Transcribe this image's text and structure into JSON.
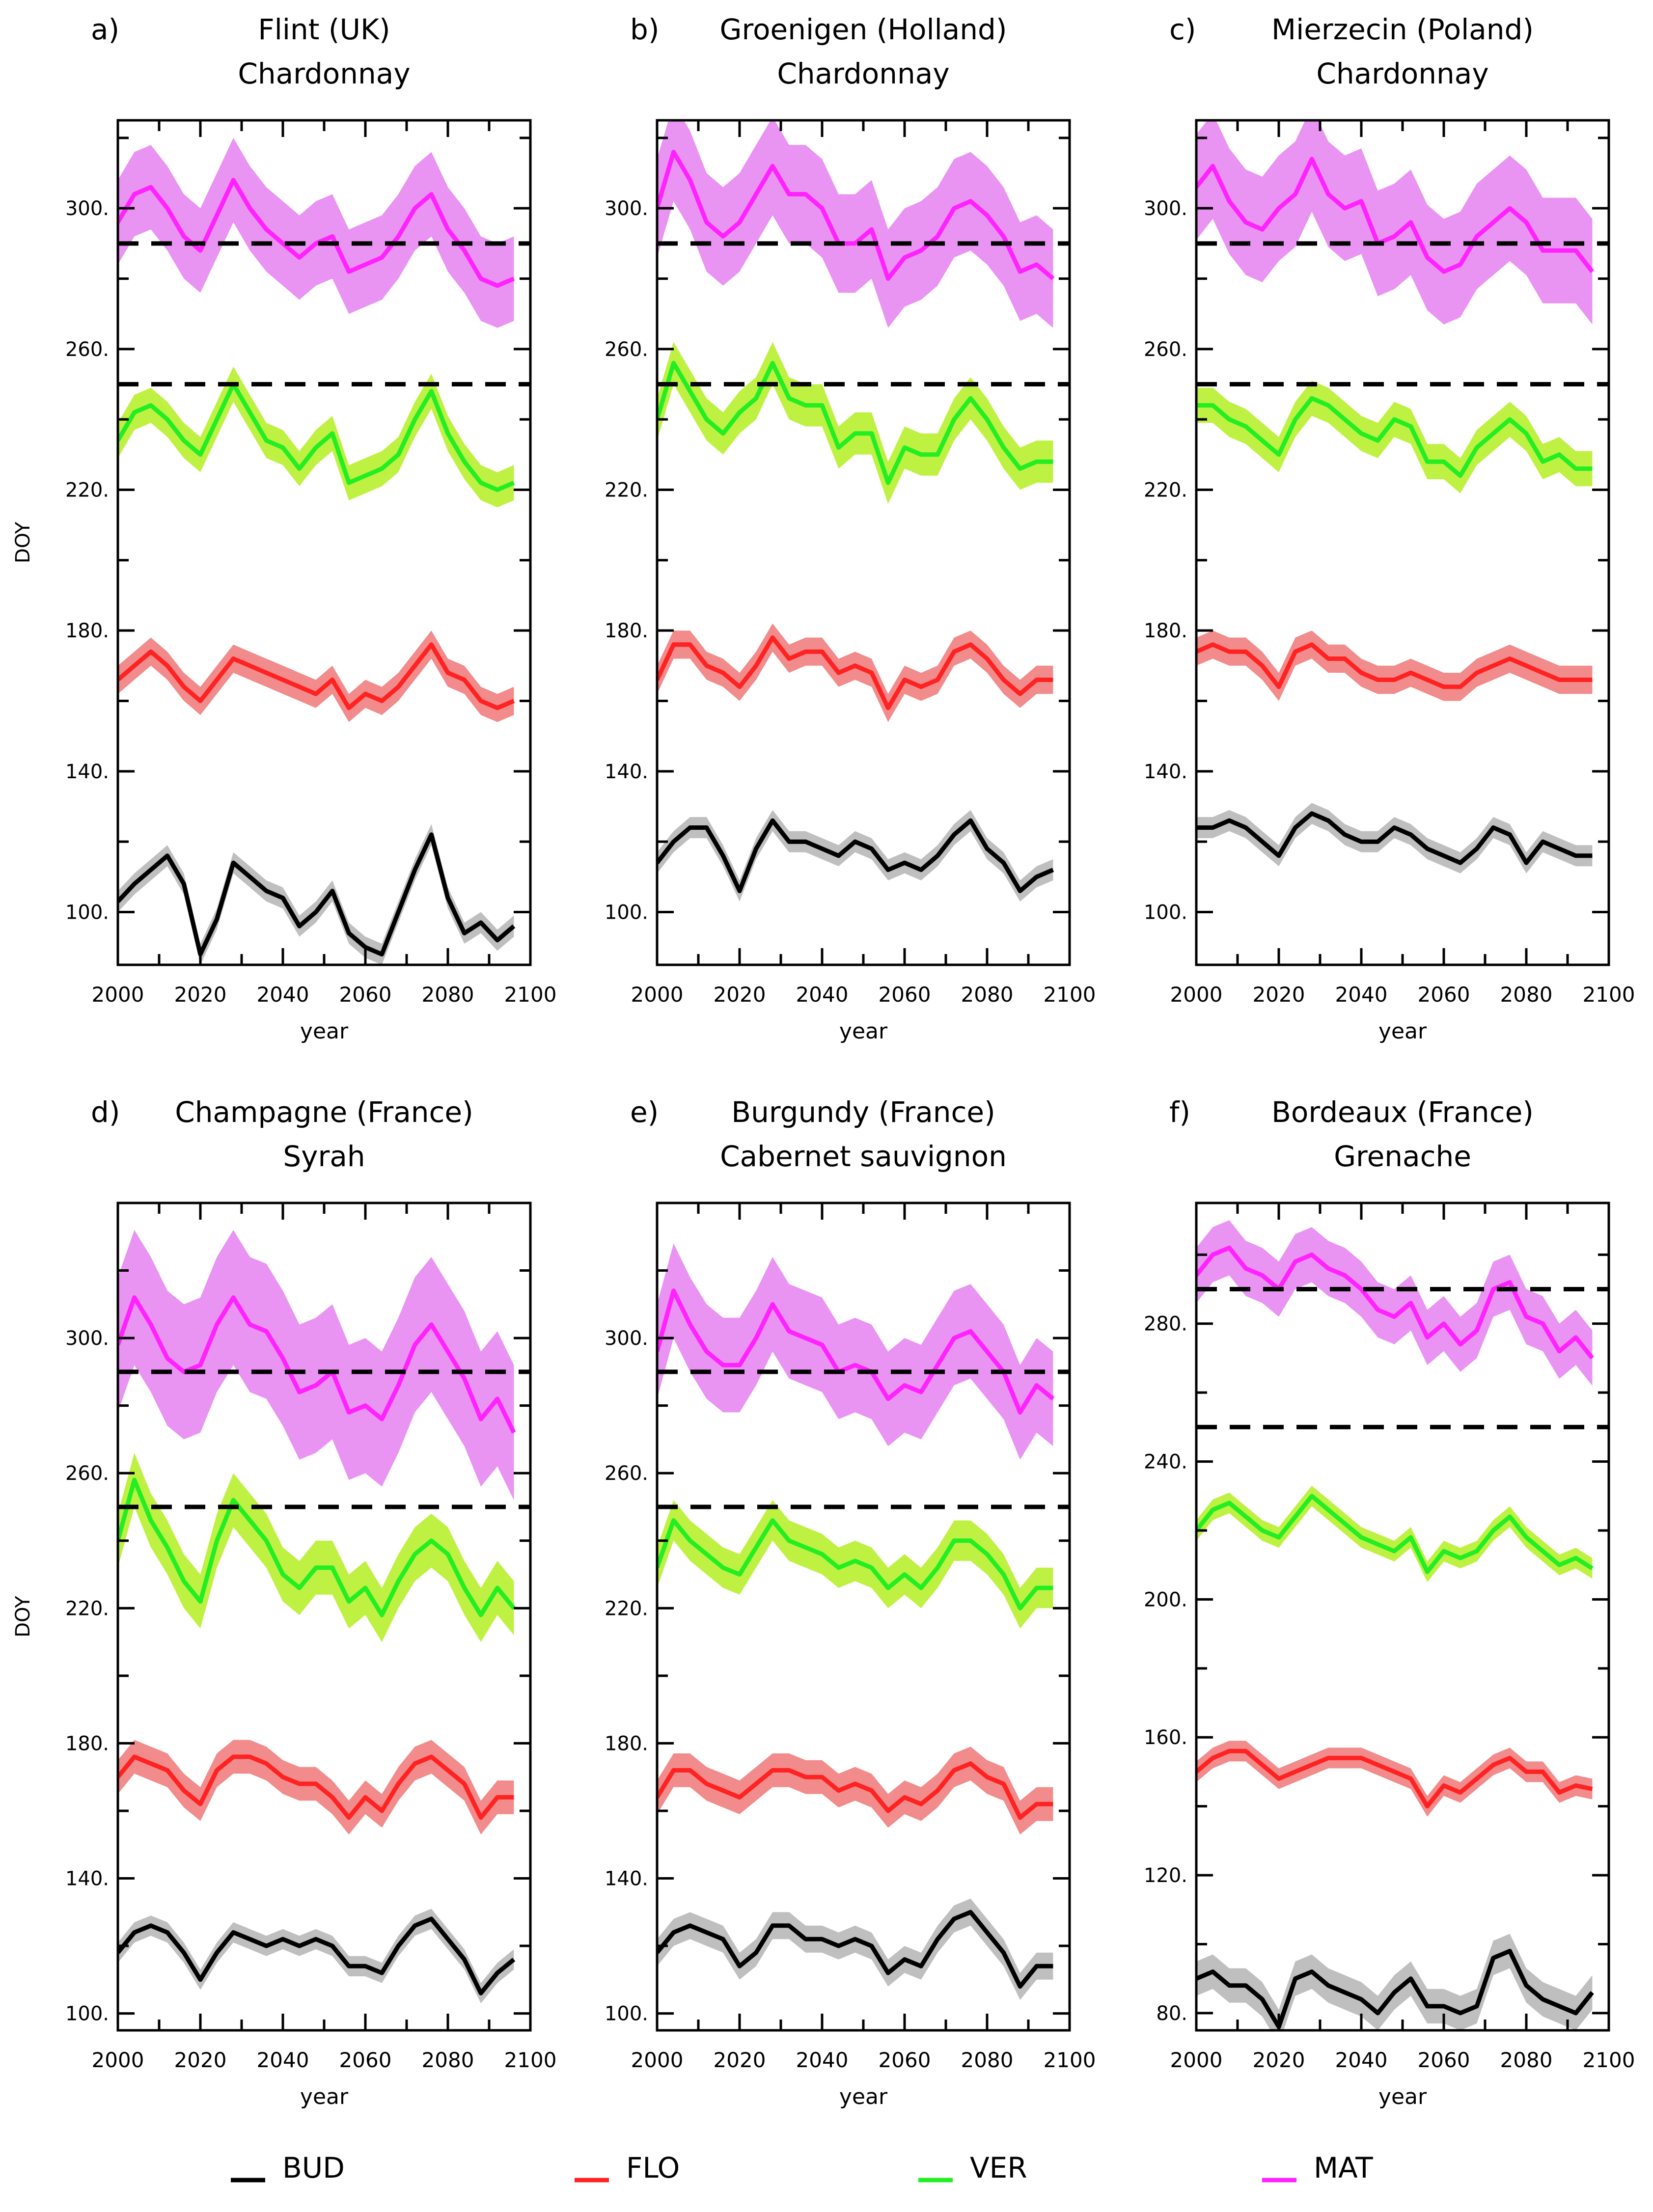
{
  "figure": {
    "common": {
      "ylabel": "DOY",
      "xlabel": "year",
      "xticks": [
        2000,
        2020,
        2040,
        2060,
        2080,
        2100
      ],
      "xlim": [
        2000,
        2100
      ]
    },
    "legend": [
      {
        "name": "BUD",
        "color": "#000000"
      },
      {
        "name": "FLO",
        "color": "#ff2222"
      },
      {
        "name": "VER",
        "color": "#22ee22"
      },
      {
        "name": "MAT",
        "color": "#ff22ff"
      }
    ]
  },
  "chart_data": [
    {
      "type": "line",
      "panel": "a)",
      "title": "Flint (UK)",
      "subtitle": "Chardonnay",
      "xlabel": "year",
      "ylabel": "DOY",
      "xlim": [
        2000,
        2100
      ],
      "ylim": [
        85,
        325
      ],
      "yticks": [
        100,
        140,
        180,
        220,
        260,
        300
      ],
      "yticklabels": [
        "100.",
        "140.",
        "180.",
        "220.",
        "260.",
        "300."
      ],
      "thresholds": [
        250,
        290
      ],
      "x": [
        2000,
        2004,
        2008,
        2012,
        2016,
        2020,
        2024,
        2028,
        2032,
        2036,
        2040,
        2044,
        2048,
        2052,
        2056,
        2060,
        2064,
        2068,
        2072,
        2076,
        2080,
        2084,
        2088,
        2092,
        2096
      ],
      "series": [
        {
          "name": "BUD",
          "band": 3,
          "values": [
            103,
            108,
            112,
            116,
            108,
            88,
            98,
            114,
            110,
            106,
            104,
            96,
            100,
            106,
            94,
            90,
            88,
            100,
            112,
            122,
            104,
            94,
            97,
            92,
            96
          ]
        },
        {
          "name": "FLO",
          "band": 4,
          "values": [
            166,
            170,
            174,
            170,
            164,
            160,
            166,
            172,
            170,
            168,
            166,
            164,
            162,
            166,
            158,
            162,
            160,
            164,
            170,
            176,
            168,
            166,
            160,
            158,
            160
          ]
        },
        {
          "name": "VER",
          "band": 5,
          "values": [
            234,
            242,
            244,
            240,
            234,
            230,
            240,
            250,
            242,
            234,
            232,
            226,
            232,
            236,
            222,
            224,
            226,
            230,
            240,
            248,
            236,
            228,
            222,
            220,
            222
          ]
        },
        {
          "name": "MAT",
          "band": 12,
          "values": [
            296,
            304,
            306,
            300,
            292,
            288,
            298,
            308,
            300,
            294,
            290,
            286,
            290,
            292,
            282,
            284,
            286,
            292,
            300,
            304,
            294,
            288,
            280,
            278,
            280
          ]
        }
      ]
    },
    {
      "type": "line",
      "panel": "b)",
      "title": "Groenigen (Holland)",
      "subtitle": "Chardonnay",
      "xlabel": "year",
      "ylabel": "DOY",
      "xlim": [
        2000,
        2100
      ],
      "ylim": [
        85,
        325
      ],
      "yticks": [
        100,
        140,
        180,
        220,
        260,
        300
      ],
      "yticklabels": [
        "100.",
        "140.",
        "180.",
        "220.",
        "260.",
        "300."
      ],
      "thresholds": [
        250,
        290
      ],
      "x": [
        2000,
        2004,
        2008,
        2012,
        2016,
        2020,
        2024,
        2028,
        2032,
        2036,
        2040,
        2044,
        2048,
        2052,
        2056,
        2060,
        2064,
        2068,
        2072,
        2076,
        2080,
        2084,
        2088,
        2092,
        2096
      ],
      "series": [
        {
          "name": "BUD",
          "band": 3,
          "values": [
            114,
            120,
            124,
            124,
            116,
            106,
            118,
            126,
            120,
            120,
            118,
            116,
            120,
            118,
            112,
            114,
            112,
            116,
            122,
            126,
            118,
            114,
            106,
            110,
            112
          ]
        },
        {
          "name": "FLO",
          "band": 4,
          "values": [
            166,
            176,
            176,
            170,
            168,
            164,
            170,
            178,
            172,
            174,
            174,
            168,
            170,
            168,
            158,
            166,
            164,
            166,
            174,
            176,
            172,
            166,
            162,
            166,
            166
          ]
        },
        {
          "name": "VER",
          "band": 6,
          "values": [
            240,
            256,
            248,
            240,
            236,
            242,
            246,
            256,
            246,
            244,
            244,
            232,
            236,
            236,
            222,
            232,
            230,
            230,
            240,
            246,
            240,
            232,
            226,
            228,
            228
          ]
        },
        {
          "name": "MAT",
          "band": 14,
          "values": [
            300,
            316,
            308,
            296,
            292,
            296,
            304,
            312,
            304,
            304,
            300,
            290,
            290,
            294,
            280,
            286,
            288,
            292,
            300,
            302,
            298,
            292,
            282,
            284,
            280
          ]
        }
      ]
    },
    {
      "type": "line",
      "panel": "c)",
      "title": "Mierzecin (Poland)",
      "subtitle": "Chardonnay",
      "xlabel": "year",
      "ylabel": "DOY",
      "xlim": [
        2000,
        2100
      ],
      "ylim": [
        85,
        325
      ],
      "yticks": [
        100,
        140,
        180,
        220,
        260,
        300
      ],
      "yticklabels": [
        "100.",
        "140.",
        "180.",
        "220.",
        "260.",
        "300."
      ],
      "thresholds": [
        250,
        290
      ],
      "x": [
        2000,
        2004,
        2008,
        2012,
        2016,
        2020,
        2024,
        2028,
        2032,
        2036,
        2040,
        2044,
        2048,
        2052,
        2056,
        2060,
        2064,
        2068,
        2072,
        2076,
        2080,
        2084,
        2088,
        2092,
        2096
      ],
      "series": [
        {
          "name": "BUD",
          "band": 3,
          "values": [
            124,
            124,
            126,
            124,
            120,
            116,
            124,
            128,
            126,
            122,
            120,
            120,
            124,
            122,
            118,
            116,
            114,
            118,
            124,
            122,
            114,
            120,
            118,
            116,
            116
          ]
        },
        {
          "name": "FLO",
          "band": 4,
          "values": [
            174,
            176,
            174,
            174,
            170,
            164,
            174,
            176,
            172,
            172,
            168,
            166,
            166,
            168,
            166,
            164,
            164,
            168,
            170,
            172,
            170,
            168,
            166,
            166,
            166
          ]
        },
        {
          "name": "VER",
          "band": 5,
          "values": [
            244,
            244,
            240,
            238,
            234,
            230,
            240,
            246,
            244,
            240,
            236,
            234,
            240,
            238,
            228,
            228,
            224,
            232,
            236,
            240,
            236,
            228,
            230,
            226,
            226
          ]
        },
        {
          "name": "MAT",
          "band": 15,
          "values": [
            306,
            312,
            302,
            296,
            294,
            300,
            304,
            314,
            304,
            300,
            302,
            290,
            292,
            296,
            286,
            282,
            284,
            292,
            296,
            300,
            296,
            288,
            288,
            288,
            282
          ]
        }
      ]
    },
    {
      "type": "line",
      "panel": "d)",
      "title": "Champagne (France)",
      "subtitle": "Syrah",
      "xlabel": "year",
      "ylabel": "DOY",
      "xlim": [
        2000,
        2100
      ],
      "ylim": [
        95,
        340
      ],
      "yticks": [
        100,
        140,
        180,
        220,
        260,
        300
      ],
      "yticklabels": [
        "100.",
        "140.",
        "180.",
        "220.",
        "260.",
        "300."
      ],
      "thresholds": [
        250,
        290
      ],
      "x": [
        2000,
        2004,
        2008,
        2012,
        2016,
        2020,
        2024,
        2028,
        2032,
        2036,
        2040,
        2044,
        2048,
        2052,
        2056,
        2060,
        2064,
        2068,
        2072,
        2076,
        2080,
        2084,
        2088,
        2092,
        2096
      ],
      "series": [
        {
          "name": "BUD",
          "band": 3,
          "values": [
            118,
            124,
            126,
            124,
            118,
            110,
            118,
            124,
            122,
            120,
            122,
            120,
            122,
            120,
            114,
            114,
            112,
            120,
            126,
            128,
            122,
            116,
            106,
            112,
            116
          ]
        },
        {
          "name": "FLO",
          "band": 5,
          "values": [
            170,
            176,
            174,
            172,
            166,
            162,
            172,
            176,
            176,
            174,
            170,
            168,
            168,
            164,
            158,
            164,
            160,
            168,
            174,
            176,
            172,
            168,
            158,
            164,
            164
          ]
        },
        {
          "name": "VER",
          "band": 8,
          "values": [
            240,
            258,
            246,
            238,
            228,
            222,
            240,
            252,
            246,
            240,
            230,
            226,
            232,
            232,
            222,
            226,
            218,
            228,
            236,
            240,
            236,
            226,
            218,
            226,
            220
          ]
        },
        {
          "name": "MAT",
          "band": 20,
          "values": [
            298,
            312,
            304,
            294,
            290,
            292,
            304,
            312,
            304,
            302,
            294,
            284,
            286,
            290,
            278,
            280,
            276,
            286,
            298,
            304,
            296,
            288,
            276,
            282,
            272
          ]
        }
      ]
    },
    {
      "type": "line",
      "panel": "e)",
      "title": "Burgundy (France)",
      "subtitle": "Cabernet sauvignon",
      "xlabel": "year",
      "ylabel": "DOY",
      "xlim": [
        2000,
        2100
      ],
      "ylim": [
        95,
        340
      ],
      "yticks": [
        100,
        140,
        180,
        220,
        260,
        300
      ],
      "yticklabels": [
        "100.",
        "140.",
        "180.",
        "220.",
        "260.",
        "300."
      ],
      "thresholds": [
        250,
        290
      ],
      "x": [
        2000,
        2004,
        2008,
        2012,
        2016,
        2020,
        2024,
        2028,
        2032,
        2036,
        2040,
        2044,
        2048,
        2052,
        2056,
        2060,
        2064,
        2068,
        2072,
        2076,
        2080,
        2084,
        2088,
        2092,
        2096
      ],
      "series": [
        {
          "name": "BUD",
          "band": 4,
          "values": [
            118,
            124,
            126,
            124,
            122,
            114,
            118,
            126,
            126,
            122,
            122,
            120,
            122,
            120,
            112,
            116,
            114,
            122,
            128,
            130,
            124,
            118,
            108,
            114,
            114
          ]
        },
        {
          "name": "FLO",
          "band": 5,
          "values": [
            164,
            172,
            172,
            168,
            166,
            164,
            168,
            172,
            172,
            170,
            170,
            166,
            168,
            166,
            160,
            164,
            162,
            166,
            172,
            174,
            170,
            168,
            158,
            162,
            162
          ]
        },
        {
          "name": "VER",
          "band": 6,
          "values": [
            232,
            246,
            240,
            236,
            232,
            230,
            238,
            246,
            240,
            238,
            236,
            232,
            234,
            232,
            226,
            230,
            226,
            232,
            240,
            240,
            236,
            230,
            220,
            226,
            226
          ]
        },
        {
          "name": "MAT",
          "band": 14,
          "values": [
            296,
            314,
            304,
            296,
            292,
            292,
            300,
            310,
            302,
            300,
            298,
            290,
            292,
            290,
            282,
            286,
            284,
            292,
            300,
            302,
            296,
            290,
            278,
            286,
            282
          ]
        }
      ]
    },
    {
      "type": "line",
      "panel": "f)",
      "title": "Bordeaux (France)",
      "subtitle": "Grenache",
      "xlabel": "year",
      "ylabel": "DOY",
      "xlim": [
        2000,
        2100
      ],
      "ylim": [
        75,
        315
      ],
      "yticks": [
        80,
        120,
        160,
        200,
        240,
        280
      ],
      "yticklabels": [
        "80.",
        "120.",
        "160.",
        "200.",
        "240.",
        "280."
      ],
      "thresholds": [
        250,
        290
      ],
      "x": [
        2000,
        2004,
        2008,
        2012,
        2016,
        2020,
        2024,
        2028,
        2032,
        2036,
        2040,
        2044,
        2048,
        2052,
        2056,
        2060,
        2064,
        2068,
        2072,
        2076,
        2080,
        2084,
        2088,
        2092,
        2096
      ],
      "series": [
        {
          "name": "BUD",
          "band": 5,
          "values": [
            90,
            92,
            88,
            88,
            84,
            76,
            90,
            92,
            88,
            86,
            84,
            80,
            86,
            90,
            82,
            82,
            80,
            82,
            96,
            98,
            88,
            84,
            82,
            80,
            86
          ]
        },
        {
          "name": "FLO",
          "band": 3,
          "values": [
            150,
            154,
            156,
            156,
            152,
            148,
            150,
            152,
            154,
            154,
            154,
            152,
            150,
            148,
            140,
            146,
            144,
            148,
            152,
            154,
            150,
            150,
            144,
            146,
            145
          ]
        },
        {
          "name": "VER",
          "band": 3,
          "values": [
            220,
            226,
            228,
            224,
            220,
            218,
            224,
            230,
            226,
            222,
            218,
            216,
            214,
            218,
            208,
            214,
            212,
            214,
            220,
            224,
            218,
            214,
            210,
            212,
            209
          ]
        },
        {
          "name": "MAT",
          "band": 8,
          "values": [
            294,
            300,
            302,
            296,
            294,
            290,
            298,
            300,
            296,
            294,
            290,
            284,
            282,
            286,
            276,
            280,
            274,
            278,
            290,
            292,
            282,
            280,
            272,
            276,
            270
          ]
        }
      ]
    }
  ]
}
